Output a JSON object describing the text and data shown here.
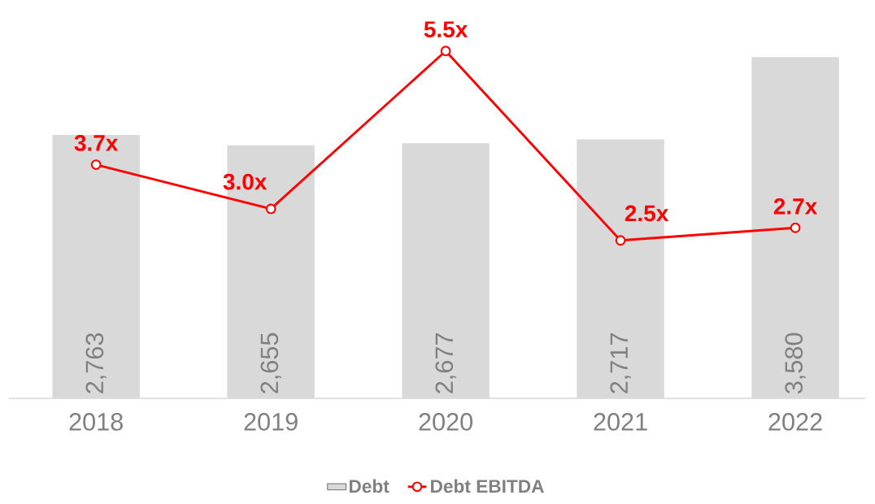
{
  "chart_data": {
    "type": "bar",
    "categories": [
      "2018",
      "2019",
      "2020",
      "2021",
      "2022"
    ],
    "series": [
      {
        "name": "Debt",
        "color": "#d9d9d9",
        "values": [
          2763,
          2655,
          2677,
          2717,
          3580
        ],
        "value_labels": [
          "2,763",
          "2,655",
          "2,677",
          "2,717",
          "3,580"
        ]
      },
      {
        "name": "Debt EBITDA",
        "type": "line",
        "axis": "y2",
        "color": "#ff0000",
        "marker": "circle",
        "values": [
          3.7,
          3.0,
          5.5,
          2.5,
          2.7
        ],
        "value_labels": [
          "3.7x",
          "3.0x",
          "5.5x",
          "2.5x",
          "2.7x"
        ]
      }
    ],
    "legend": "bottom",
    "grid": false,
    "tick_labels": "x"
  }
}
